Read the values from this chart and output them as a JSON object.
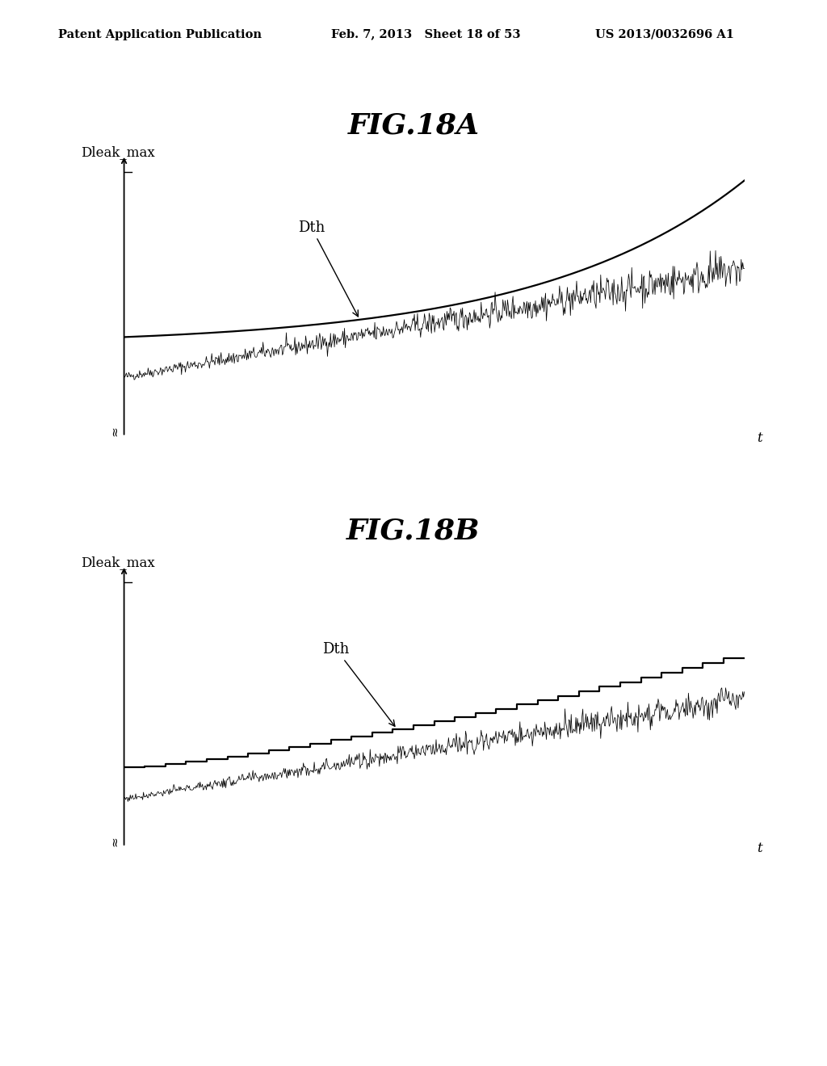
{
  "background_color": "#ffffff",
  "header_left": "Patent Application Publication",
  "header_center": "Feb. 7, 2013   Sheet 18 of 53",
  "header_right": "US 2013/0032696 A1",
  "header_fontsize": 10.5,
  "fig_title_A": "FIG.18A",
  "fig_title_B": "FIG.18B",
  "title_fontsize": 26,
  "ylabel_A": "Dleak_max",
  "ylabel_B": "Dleak_max",
  "xlabel": "t",
  "label_fontsize": 12,
  "dth_label": "Dth",
  "dth_fontsize": 13,
  "noise_seed_A": 42,
  "noise_seed_B": 77,
  "num_points": 800
}
